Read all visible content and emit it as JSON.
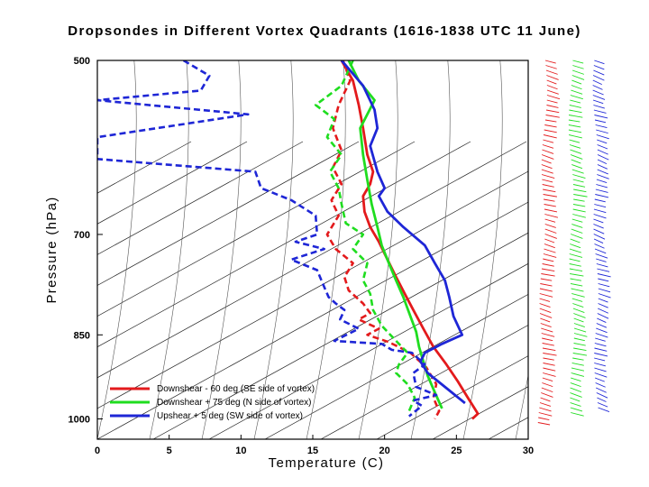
{
  "chart_data": {
    "type": "line",
    "title": "Dropsondes in Different Vortex Quadrants (1616-1838 UTC 11 June)",
    "xlabel": "Temperature (C)",
    "ylabel": "Pressure (hPa)",
    "xlim": [
      0,
      30
    ],
    "ylim_hpa": [
      1040,
      500
    ],
    "xticks": [
      0,
      5,
      10,
      15,
      20,
      25,
      30
    ],
    "yticks": [
      500,
      700,
      850,
      1000
    ],
    "log_pressure_axis": true,
    "skewed_isotherms": true,
    "legend": {
      "placement": "bottom-left",
      "entries": [
        "Downshear - 60 deg (SE side of vortex)",
        "Downshear + 75 deg (N side of vortex)",
        "Upshear + 5 deg (SW side of vortex)"
      ]
    },
    "series": [
      {
        "name": "Downshear - 60 deg (SE side of vortex)",
        "color": "#e31a1c",
        "temperature": [
          [
            17.0,
            500
          ],
          [
            17.8,
            520
          ],
          [
            18.2,
            545
          ],
          [
            18.5,
            570
          ],
          [
            18.8,
            600
          ],
          [
            19.2,
            620
          ],
          [
            19.0,
            635
          ],
          [
            18.5,
            650
          ],
          [
            18.6,
            670
          ],
          [
            19.0,
            690
          ],
          [
            19.6,
            710
          ],
          [
            20.2,
            735
          ],
          [
            20.8,
            760
          ],
          [
            21.4,
            785
          ],
          [
            22.0,
            810
          ],
          [
            22.7,
            840
          ],
          [
            23.4,
            870
          ],
          [
            24.3,
            900
          ],
          [
            25.1,
            930
          ],
          [
            25.8,
            960
          ],
          [
            26.5,
            990
          ],
          [
            26.1,
            1000
          ]
        ],
        "dewpoint": [
          [
            17.1,
            500
          ],
          [
            17.6,
            520
          ],
          [
            16.8,
            545
          ],
          [
            16.4,
            570
          ],
          [
            17.0,
            595
          ],
          [
            16.4,
            615
          ],
          [
            17.0,
            635
          ],
          [
            16.3,
            655
          ],
          [
            16.8,
            675
          ],
          [
            16.0,
            700
          ],
          [
            16.6,
            720
          ],
          [
            17.8,
            740
          ],
          [
            17.2,
            760
          ],
          [
            17.5,
            780
          ],
          [
            18.5,
            800
          ],
          [
            19.0,
            815
          ],
          [
            18.2,
            825
          ],
          [
            19.6,
            840
          ],
          [
            18.8,
            850
          ],
          [
            20.3,
            862
          ],
          [
            21.8,
            880
          ],
          [
            22.9,
            905
          ],
          [
            23.6,
            935
          ],
          [
            23.4,
            960
          ],
          [
            23.8,
            985
          ],
          [
            23.5,
            1000
          ]
        ]
      },
      {
        "name": "Downshear + 75 deg (N side of vortex)",
        "color": "#1fdd1f",
        "temperature": [
          [
            17.5,
            500
          ],
          [
            18.2,
            520
          ],
          [
            19.3,
            540
          ],
          [
            18.8,
            555
          ],
          [
            18.3,
            570
          ],
          [
            18.5,
            600
          ],
          [
            18.8,
            630
          ],
          [
            19.1,
            660
          ],
          [
            19.5,
            690
          ],
          [
            19.8,
            715
          ],
          [
            20.3,
            740
          ],
          [
            20.8,
            765
          ],
          [
            21.3,
            790
          ],
          [
            21.8,
            820
          ],
          [
            22.2,
            845
          ],
          [
            22.4,
            870
          ],
          [
            22.7,
            895
          ],
          [
            23.0,
            920
          ],
          [
            23.5,
            950
          ],
          [
            24.0,
            980
          ]
        ],
        "dewpoint": [
          [
            17.8,
            500
          ],
          [
            17.0,
            525
          ],
          [
            15.2,
            545
          ],
          [
            16.5,
            560
          ],
          [
            16.0,
            580
          ],
          [
            17.0,
            600
          ],
          [
            16.2,
            620
          ],
          [
            16.8,
            640
          ],
          [
            17.0,
            660
          ],
          [
            17.3,
            685
          ],
          [
            18.5,
            700
          ],
          [
            17.8,
            720
          ],
          [
            18.8,
            740
          ],
          [
            18.5,
            765
          ],
          [
            19.0,
            785
          ],
          [
            19.2,
            810
          ],
          [
            19.8,
            835
          ],
          [
            20.8,
            860
          ],
          [
            21.6,
            880
          ],
          [
            21.0,
            900
          ],
          [
            20.8,
            915
          ],
          [
            21.6,
            935
          ],
          [
            22.1,
            960
          ],
          [
            21.7,
            985
          ]
        ]
      },
      {
        "name": "Upshear + 5 deg (SW side of vortex)",
        "color": "#1e26d6",
        "temperature": [
          [
            17.0,
            500
          ],
          [
            18.5,
            525
          ],
          [
            19.3,
            550
          ],
          [
            19.5,
            570
          ],
          [
            19.0,
            590
          ],
          [
            19.5,
            620
          ],
          [
            20.0,
            640
          ],
          [
            19.6,
            650
          ],
          [
            20.2,
            670
          ],
          [
            21.3,
            690
          ],
          [
            22.8,
            715
          ],
          [
            23.5,
            740
          ],
          [
            24.2,
            765
          ],
          [
            24.5,
            790
          ],
          [
            24.8,
            820
          ],
          [
            25.4,
            850
          ],
          [
            24.0,
            865
          ],
          [
            22.8,
            880
          ],
          [
            22.5,
            895
          ],
          [
            23.0,
            915
          ],
          [
            24.2,
            940
          ],
          [
            25.6,
            970
          ]
        ],
        "dewpoint": [
          [
            6.0,
            500
          ],
          [
            7.8,
            515
          ],
          [
            7.2,
            530
          ],
          [
            0.0,
            540
          ],
          [
            10.5,
            555
          ],
          [
            0.0,
            580
          ],
          [
            0.0,
            605
          ],
          [
            11.0,
            620
          ],
          [
            11.4,
            640
          ],
          [
            13.5,
            655
          ],
          [
            15.2,
            675
          ],
          [
            15.3,
            700
          ],
          [
            13.8,
            710
          ],
          [
            15.8,
            720
          ],
          [
            13.5,
            735
          ],
          [
            15.3,
            750
          ],
          [
            15.8,
            775
          ],
          [
            16.1,
            790
          ],
          [
            16.6,
            800
          ],
          [
            17.2,
            810
          ],
          [
            16.9,
            825
          ],
          [
            18.2,
            840
          ],
          [
            16.5,
            860
          ],
          [
            19.8,
            865
          ],
          [
            20.5,
            875
          ],
          [
            21.9,
            880
          ],
          [
            22.8,
            900
          ],
          [
            22.0,
            915
          ],
          [
            22.2,
            940
          ],
          [
            23.6,
            955
          ],
          [
            22.0,
            965
          ],
          [
            22.6,
            975
          ],
          [
            21.7,
            995
          ]
        ]
      }
    ],
    "wind_barbs": [
      {
        "series": "Downshear - 60 deg (SE side of vortex)",
        "color": "#e31a1c",
        "p_range": [
          500,
          1010
        ]
      },
      {
        "series": "Downshear + 75 deg (N side of vortex)",
        "color": "#1fdd1f",
        "p_range": [
          500,
          995
        ]
      },
      {
        "series": "Upshear + 5 deg (SW side of vortex)",
        "color": "#1e26d6",
        "p_range": [
          500,
          985
        ]
      }
    ]
  }
}
